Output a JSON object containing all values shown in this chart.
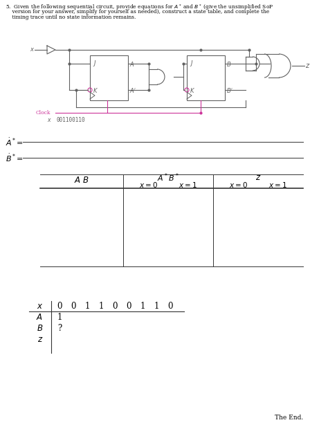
{
  "problem_line1": "5.  Given the following sequential circuit, provide equations for $A^*$ and $B^*$ (give the unsimplified SoP",
  "problem_line2": "    version for your answer, simplify for yourself as needed), construct a state table, and complete the",
  "problem_line3": "    timing trace until no state information remains.",
  "Astar_label": "$A^* =$",
  "Bstar_label": "$B^* =$",
  "table_col1_header": "$A \\ B$",
  "table_col2_header": "$A^*B^*$",
  "table_col2_sub1": "$x = 0$",
  "table_col2_sub2": "$x = 1$",
  "table_col3_header": "$z$",
  "table_col3_sub1": "$x = 0$",
  "table_col3_sub2": "$x = 1$",
  "timing_x_vals": [
    "0",
    "0",
    "1",
    "1",
    "0",
    "0",
    "1",
    "1",
    "0"
  ],
  "timing_A_val": "1",
  "timing_B_val": "?",
  "clock_label": "Clock",
  "x_seq": "001100110",
  "end_text": "The End.",
  "bg_color": "#ffffff",
  "text_color": "#000000",
  "gray": "#606060",
  "pink": "#cc3399"
}
